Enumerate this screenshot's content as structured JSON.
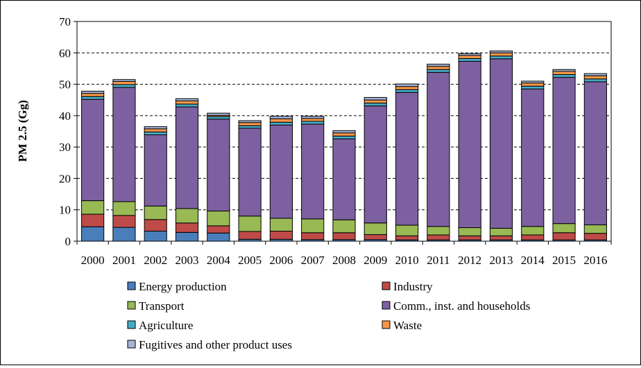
{
  "chart_data": {
    "type": "bar",
    "stacked": true,
    "title": "",
    "xlabel": "",
    "ylabel": "PM 2.5 (Gg)",
    "ylim": [
      0,
      70
    ],
    "yticks": [
      0,
      10,
      20,
      30,
      40,
      50,
      60,
      70
    ],
    "grid": "horizontal dashed",
    "legend_position": "bottom",
    "categories": [
      "2000",
      "2001",
      "2002",
      "2003",
      "2004",
      "2005",
      "2006",
      "2007",
      "2008",
      "2009",
      "2010",
      "2011",
      "2012",
      "2013",
      "2014",
      "2015",
      "2016"
    ],
    "series": [
      {
        "name": "Energy production",
        "color": "#4a7ebb",
        "values": [
          4.6,
          4.4,
          3.2,
          2.8,
          2.6,
          0.6,
          0.6,
          0.5,
          0.5,
          0.5,
          0.4,
          0.4,
          0.4,
          0.4,
          0.4,
          0.4,
          0.4
        ]
      },
      {
        "name": "Industry",
        "color": "#be4b48",
        "values": [
          4.0,
          3.8,
          3.7,
          3.0,
          2.3,
          2.5,
          2.6,
          2.2,
          2.2,
          1.6,
          1.3,
          1.6,
          1.3,
          1.3,
          1.6,
          2.3,
          2.1
        ]
      },
      {
        "name": "Transport",
        "color": "#98b954",
        "values": [
          4.3,
          4.4,
          4.3,
          4.6,
          4.7,
          4.9,
          4.1,
          4.4,
          4.1,
          3.7,
          3.4,
          2.7,
          2.6,
          2.4,
          2.7,
          2.9,
          2.7
        ]
      },
      {
        "name": "Comm., inst. and households",
        "color": "#7d60a0",
        "values": [
          32.3,
          36.4,
          22.7,
          32.4,
          29.3,
          28.0,
          29.7,
          30.2,
          25.8,
          37.3,
          42.3,
          49.1,
          53.0,
          54.0,
          43.8,
          46.6,
          45.6
        ]
      },
      {
        "name": "Agriculture",
        "color": "#46aac5",
        "values": [
          0.9,
          0.9,
          0.9,
          0.9,
          0.8,
          0.8,
          0.9,
          0.9,
          0.9,
          0.9,
          0.9,
          0.9,
          0.9,
          0.9,
          0.9,
          0.9,
          0.9
        ]
      },
      {
        "name": "Waste",
        "color": "#f79646",
        "values": [
          1.0,
          1.0,
          1.0,
          1.0,
          0.4,
          1.0,
          1.1,
          0.9,
          1.0,
          1.0,
          1.0,
          1.0,
          1.0,
          1.0,
          1.0,
          1.0,
          1.0
        ]
      },
      {
        "name": "Fugitives and other product uses",
        "color": "#a5b6d9",
        "values": [
          0.7,
          0.6,
          0.7,
          0.7,
          0.7,
          0.6,
          0.8,
          0.7,
          0.7,
          0.8,
          0.8,
          0.7,
          0.6,
          0.6,
          0.6,
          0.6,
          0.7
        ]
      }
    ]
  }
}
